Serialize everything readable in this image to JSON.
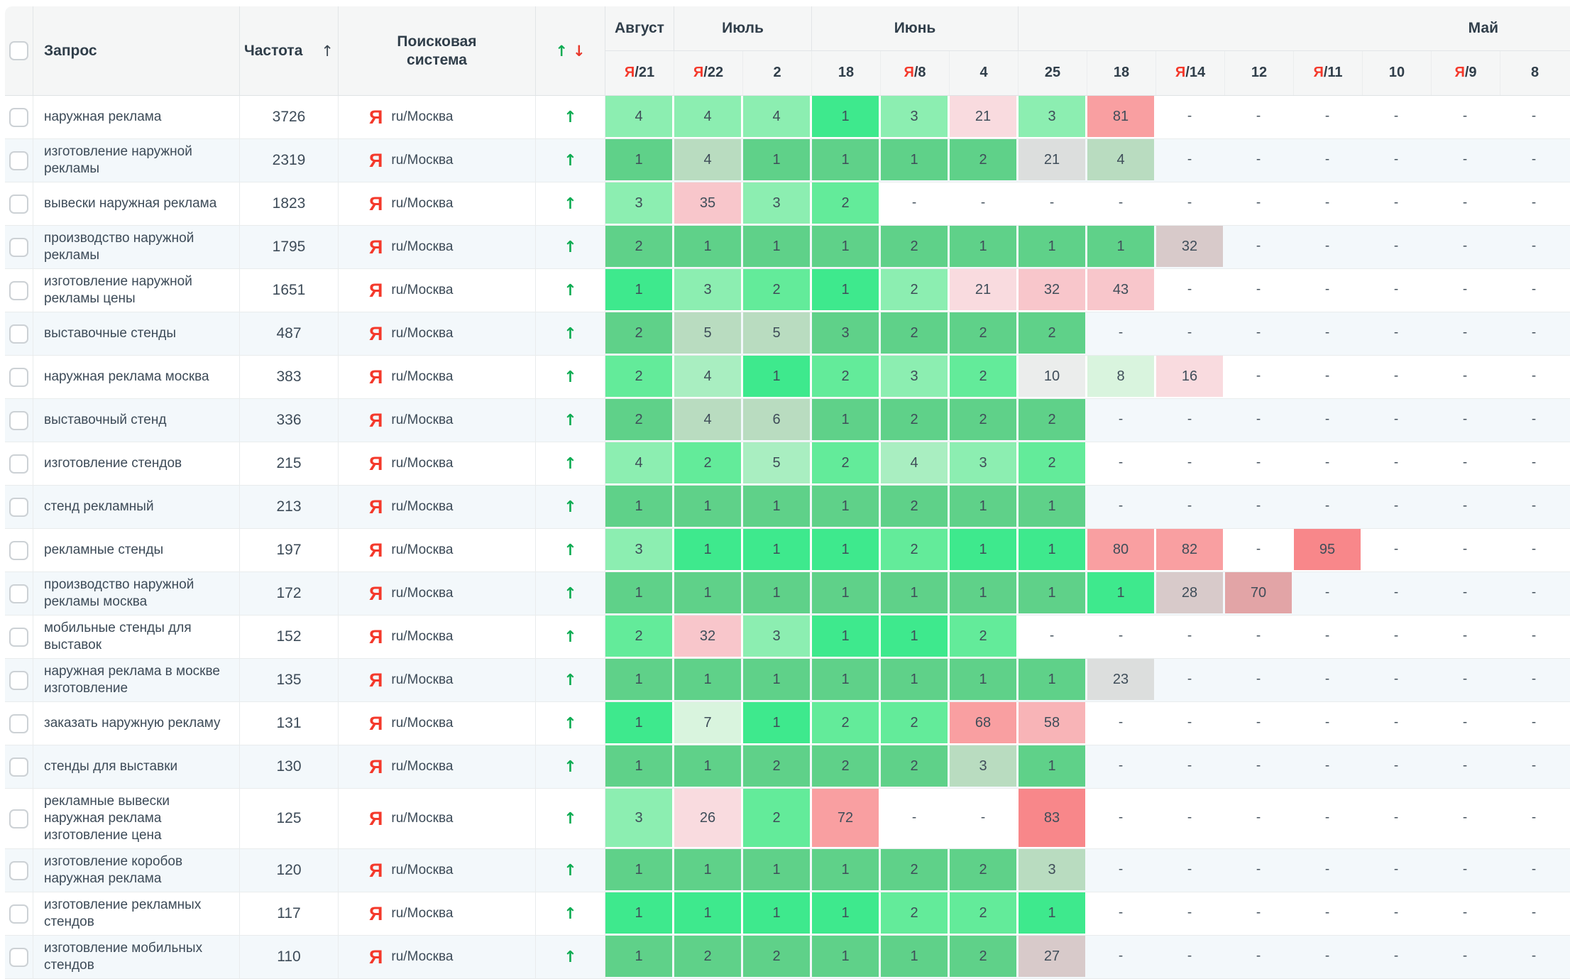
{
  "header": {
    "query_label": "Запрос",
    "frequency_label": "Частота",
    "engine_label": "Поисковая система",
    "sort_arrow": "↑",
    "up_arrow": "↑",
    "down_arrow": "↓",
    "month_groups": [
      {
        "key": "august",
        "label": "Август",
        "span": 1
      },
      {
        "key": "july",
        "label": "Июль",
        "span": 2
      },
      {
        "key": "june",
        "label": "Июнь",
        "span": 3
      },
      {
        "key": "may",
        "label": "Май",
        "span": 8,
        "align": "right"
      }
    ],
    "date_columns": [
      {
        "prefix": "Я",
        "label": "/21"
      },
      {
        "prefix": "Я",
        "label": "/22"
      },
      {
        "label": "2"
      },
      {
        "label": "18"
      },
      {
        "prefix": "Я",
        "label": "/8"
      },
      {
        "label": "4"
      },
      {
        "label": "25"
      },
      {
        "label": "18"
      },
      {
        "prefix": "Я",
        "label": "/14"
      },
      {
        "label": "12"
      },
      {
        "prefix": "Я",
        "label": "/11"
      },
      {
        "label": "10"
      },
      {
        "prefix": "Я",
        "label": "/9"
      },
      {
        "label": "8"
      }
    ]
  },
  "colors": {
    "accent_green": "#0cab51",
    "accent_red": "#e8372a",
    "yandex_red": "#f4392b",
    "header_bg": "#f5f6f6",
    "row_alt_bg": "#f3f8fb"
  },
  "palette": {
    "g1": "#3ee98d",
    "gb": "#63eb9a",
    "g2": "#8ceeb1",
    "g2p": "#a9eec1",
    "g3": "#5fd189",
    "g4": "#b9dcc0",
    "g5": "#d9f4de",
    "gray1": "#dcdedd",
    "gray2": "#ebedec",
    "gp": "#d8caca",
    "rose": "#e2a4a6",
    "p1": "#f9dbdf",
    "p2": "#f8c6cb",
    "p3": "#f99fa1",
    "p4": "#f8b4b7",
    "p5": "#f8878a"
  },
  "rows": [
    {
      "query": "наружная реклама",
      "frequency": "3726",
      "engine_icon": "Я",
      "engine": "ru/Москва",
      "trend": "up",
      "cells": [
        [
          "4",
          "g2"
        ],
        [
          "4",
          "g2"
        ],
        [
          "4",
          "g2"
        ],
        [
          "1",
          "g1"
        ],
        [
          "3",
          "g2"
        ],
        [
          "21",
          "p1"
        ],
        [
          "3",
          "g2"
        ],
        [
          "81",
          "p3"
        ],
        [
          "-",
          ""
        ],
        [
          "-",
          ""
        ],
        [
          "-",
          ""
        ],
        [
          "-",
          ""
        ],
        [
          "-",
          ""
        ],
        [
          "-",
          ""
        ]
      ]
    },
    {
      "query": "изготовление наружной рекламы",
      "frequency": "2319",
      "engine_icon": "Я",
      "engine": "ru/Москва",
      "trend": "up",
      "cells": [
        [
          "1",
          "g3"
        ],
        [
          "4",
          "g4"
        ],
        [
          "1",
          "g3"
        ],
        [
          "1",
          "g3"
        ],
        [
          "1",
          "g3"
        ],
        [
          "2",
          "g3"
        ],
        [
          "21",
          "gray1"
        ],
        [
          "4",
          "g4"
        ],
        [
          "-",
          ""
        ],
        [
          "-",
          ""
        ],
        [
          "-",
          ""
        ],
        [
          "-",
          ""
        ],
        [
          "-",
          ""
        ],
        [
          "-",
          ""
        ]
      ]
    },
    {
      "query": "вывески наружная реклама",
      "frequency": "1823",
      "engine_icon": "Я",
      "engine": "ru/Москва",
      "trend": "up",
      "cells": [
        [
          "3",
          "g2"
        ],
        [
          "35",
          "p2"
        ],
        [
          "3",
          "g2"
        ],
        [
          "2",
          "gb"
        ],
        [
          "-",
          ""
        ],
        [
          "-",
          ""
        ],
        [
          "-",
          ""
        ],
        [
          "-",
          ""
        ],
        [
          "-",
          ""
        ],
        [
          "-",
          ""
        ],
        [
          "-",
          ""
        ],
        [
          "-",
          ""
        ],
        [
          "-",
          ""
        ],
        [
          "-",
          ""
        ]
      ]
    },
    {
      "query": "производство наружной рекламы",
      "frequency": "1795",
      "engine_icon": "Я",
      "engine": "ru/Москва",
      "trend": "up",
      "cells": [
        [
          "2",
          "g3"
        ],
        [
          "1",
          "g3"
        ],
        [
          "1",
          "g3"
        ],
        [
          "1",
          "g3"
        ],
        [
          "2",
          "g3"
        ],
        [
          "1",
          "g3"
        ],
        [
          "1",
          "g3"
        ],
        [
          "1",
          "g3"
        ],
        [
          "32",
          "gp"
        ],
        [
          "-",
          ""
        ],
        [
          "-",
          ""
        ],
        [
          "-",
          ""
        ],
        [
          "-",
          ""
        ],
        [
          "-",
          ""
        ]
      ]
    },
    {
      "query": "изготовление наружной рекламы цены",
      "frequency": "1651",
      "engine_icon": "Я",
      "engine": "ru/Москва",
      "trend": "up",
      "cells": [
        [
          "1",
          "g1"
        ],
        [
          "3",
          "g2"
        ],
        [
          "2",
          "gb"
        ],
        [
          "1",
          "g1"
        ],
        [
          "2",
          "g2"
        ],
        [
          "21",
          "p1"
        ],
        [
          "32",
          "p2"
        ],
        [
          "43",
          "p2"
        ],
        [
          "-",
          ""
        ],
        [
          "-",
          ""
        ],
        [
          "-",
          ""
        ],
        [
          "-",
          ""
        ],
        [
          "-",
          ""
        ],
        [
          "-",
          ""
        ]
      ]
    },
    {
      "query": "выставочные стенды",
      "frequency": "487",
      "engine_icon": "Я",
      "engine": "ru/Москва",
      "trend": "up",
      "cells": [
        [
          "2",
          "g3"
        ],
        [
          "5",
          "g4"
        ],
        [
          "5",
          "g4"
        ],
        [
          "3",
          "g3"
        ],
        [
          "2",
          "g3"
        ],
        [
          "2",
          "g3"
        ],
        [
          "2",
          "g3"
        ],
        [
          "-",
          ""
        ],
        [
          "-",
          ""
        ],
        [
          "-",
          ""
        ],
        [
          "-",
          ""
        ],
        [
          "-",
          ""
        ],
        [
          "-",
          ""
        ],
        [
          "-",
          ""
        ]
      ]
    },
    {
      "query": "наружная реклама москва",
      "frequency": "383",
      "engine_icon": "Я",
      "engine": "ru/Москва",
      "trend": "up",
      "cells": [
        [
          "2",
          "gb"
        ],
        [
          "4",
          "g2p"
        ],
        [
          "1",
          "g1"
        ],
        [
          "2",
          "gb"
        ],
        [
          "3",
          "g2"
        ],
        [
          "2",
          "gb"
        ],
        [
          "10",
          "gray2"
        ],
        [
          "8",
          "g5"
        ],
        [
          "16",
          "p1"
        ],
        [
          "-",
          ""
        ],
        [
          "-",
          ""
        ],
        [
          "-",
          ""
        ],
        [
          "-",
          ""
        ],
        [
          "-",
          ""
        ]
      ]
    },
    {
      "query": "выставочный стенд",
      "frequency": "336",
      "engine_icon": "Я",
      "engine": "ru/Москва",
      "trend": "up",
      "cells": [
        [
          "2",
          "g3"
        ],
        [
          "4",
          "g4"
        ],
        [
          "6",
          "g4"
        ],
        [
          "1",
          "g3"
        ],
        [
          "2",
          "g3"
        ],
        [
          "2",
          "g3"
        ],
        [
          "2",
          "g3"
        ],
        [
          "-",
          ""
        ],
        [
          "-",
          ""
        ],
        [
          "-",
          ""
        ],
        [
          "-",
          ""
        ],
        [
          "-",
          ""
        ],
        [
          "-",
          ""
        ],
        [
          "-",
          ""
        ]
      ]
    },
    {
      "query": "изготовление стендов",
      "frequency": "215",
      "engine_icon": "Я",
      "engine": "ru/Москва",
      "trend": "up",
      "cells": [
        [
          "4",
          "g2"
        ],
        [
          "2",
          "gb"
        ],
        [
          "5",
          "g2p"
        ],
        [
          "2",
          "gb"
        ],
        [
          "4",
          "g2p"
        ],
        [
          "3",
          "g2"
        ],
        [
          "2",
          "gb"
        ],
        [
          "-",
          ""
        ],
        [
          "-",
          ""
        ],
        [
          "-",
          ""
        ],
        [
          "-",
          ""
        ],
        [
          "-",
          ""
        ],
        [
          "-",
          ""
        ],
        [
          "-",
          ""
        ]
      ]
    },
    {
      "query": "стенд рекламный",
      "frequency": "213",
      "engine_icon": "Я",
      "engine": "ru/Москва",
      "trend": "up",
      "cells": [
        [
          "1",
          "g3"
        ],
        [
          "1",
          "g3"
        ],
        [
          "1",
          "g3"
        ],
        [
          "1",
          "g3"
        ],
        [
          "2",
          "g3"
        ],
        [
          "1",
          "g3"
        ],
        [
          "1",
          "g3"
        ],
        [
          "-",
          ""
        ],
        [
          "-",
          ""
        ],
        [
          "-",
          ""
        ],
        [
          "-",
          ""
        ],
        [
          "-",
          ""
        ],
        [
          "-",
          ""
        ],
        [
          "-",
          ""
        ]
      ]
    },
    {
      "query": "рекламные стенды",
      "frequency": "197",
      "engine_icon": "Я",
      "engine": "ru/Москва",
      "trend": "up",
      "cells": [
        [
          "3",
          "g2"
        ],
        [
          "1",
          "g1"
        ],
        [
          "1",
          "g1"
        ],
        [
          "1",
          "g1"
        ],
        [
          "2",
          "gb"
        ],
        [
          "1",
          "g1"
        ],
        [
          "1",
          "g1"
        ],
        [
          "80",
          "p3"
        ],
        [
          "82",
          "p3"
        ],
        [
          "-",
          ""
        ],
        [
          "95",
          "p5"
        ],
        [
          "-",
          ""
        ],
        [
          "-",
          ""
        ],
        [
          "-",
          ""
        ]
      ]
    },
    {
      "query": "производство наружной рекламы москва",
      "frequency": "172",
      "engine_icon": "Я",
      "engine": "ru/Москва",
      "trend": "up",
      "cells": [
        [
          "1",
          "g3"
        ],
        [
          "1",
          "g3"
        ],
        [
          "1",
          "g3"
        ],
        [
          "1",
          "g3"
        ],
        [
          "1",
          "g3"
        ],
        [
          "1",
          "g3"
        ],
        [
          "1",
          "g3"
        ],
        [
          "1",
          "g1"
        ],
        [
          "28",
          "gp"
        ],
        [
          "70",
          "rose"
        ],
        [
          "-",
          ""
        ],
        [
          "-",
          ""
        ],
        [
          "-",
          ""
        ],
        [
          "-",
          ""
        ]
      ]
    },
    {
      "query": "мобильные стенды для выставок",
      "frequency": "152",
      "engine_icon": "Я",
      "engine": "ru/Москва",
      "trend": "up",
      "cells": [
        [
          "2",
          "gb"
        ],
        [
          "32",
          "p2"
        ],
        [
          "3",
          "g2"
        ],
        [
          "1",
          "g1"
        ],
        [
          "1",
          "g1"
        ],
        [
          "2",
          "gb"
        ],
        [
          "-",
          ""
        ],
        [
          "-",
          ""
        ],
        [
          "-",
          ""
        ],
        [
          "-",
          ""
        ],
        [
          "-",
          ""
        ],
        [
          "-",
          ""
        ],
        [
          "-",
          ""
        ],
        [
          "-",
          ""
        ]
      ]
    },
    {
      "query": "наружная реклама в москве изготовление",
      "frequency": "135",
      "engine_icon": "Я",
      "engine": "ru/Москва",
      "trend": "up",
      "cells": [
        [
          "1",
          "g3"
        ],
        [
          "1",
          "g3"
        ],
        [
          "1",
          "g3"
        ],
        [
          "1",
          "g3"
        ],
        [
          "1",
          "g3"
        ],
        [
          "1",
          "g3"
        ],
        [
          "1",
          "g3"
        ],
        [
          "23",
          "gray1"
        ],
        [
          "-",
          ""
        ],
        [
          "-",
          ""
        ],
        [
          "-",
          ""
        ],
        [
          "-",
          ""
        ],
        [
          "-",
          ""
        ],
        [
          "-",
          ""
        ]
      ]
    },
    {
      "query": "заказать наружную рекламу",
      "frequency": "131",
      "engine_icon": "Я",
      "engine": "ru/Москва",
      "trend": "up",
      "cells": [
        [
          "1",
          "g1"
        ],
        [
          "7",
          "g5"
        ],
        [
          "1",
          "g1"
        ],
        [
          "2",
          "gb"
        ],
        [
          "2",
          "gb"
        ],
        [
          "68",
          "p3"
        ],
        [
          "58",
          "p4"
        ],
        [
          "-",
          ""
        ],
        [
          "-",
          ""
        ],
        [
          "-",
          ""
        ],
        [
          "-",
          ""
        ],
        [
          "-",
          ""
        ],
        [
          "-",
          ""
        ],
        [
          "-",
          ""
        ]
      ]
    },
    {
      "query": "стенды для выставки",
      "frequency": "130",
      "engine_icon": "Я",
      "engine": "ru/Москва",
      "trend": "up",
      "cells": [
        [
          "1",
          "g3"
        ],
        [
          "1",
          "g3"
        ],
        [
          "2",
          "g3"
        ],
        [
          "2",
          "g3"
        ],
        [
          "2",
          "g3"
        ],
        [
          "3",
          "g4"
        ],
        [
          "1",
          "g3"
        ],
        [
          "-",
          ""
        ],
        [
          "-",
          ""
        ],
        [
          "-",
          ""
        ],
        [
          "-",
          ""
        ],
        [
          "-",
          ""
        ],
        [
          "-",
          ""
        ],
        [
          "-",
          ""
        ]
      ]
    },
    {
      "query": "рекламные вывески наружная реклама изготовление цена",
      "frequency": "125",
      "engine_icon": "Я",
      "engine": "ru/Москва",
      "trend": "up",
      "tall": true,
      "cells": [
        [
          "3",
          "g2"
        ],
        [
          "26",
          "p1"
        ],
        [
          "2",
          "gb"
        ],
        [
          "72",
          "p3"
        ],
        [
          "-",
          ""
        ],
        [
          "-",
          ""
        ],
        [
          "83",
          "p5"
        ],
        [
          "-",
          ""
        ],
        [
          "-",
          ""
        ],
        [
          "-",
          ""
        ],
        [
          "-",
          ""
        ],
        [
          "-",
          ""
        ],
        [
          "-",
          ""
        ],
        [
          "-",
          ""
        ]
      ]
    },
    {
      "query": "изготовление коробов наружная реклама",
      "frequency": "120",
      "engine_icon": "Я",
      "engine": "ru/Москва",
      "trend": "up",
      "cells": [
        [
          "1",
          "g3"
        ],
        [
          "1",
          "g3"
        ],
        [
          "1",
          "g3"
        ],
        [
          "1",
          "g3"
        ],
        [
          "2",
          "g3"
        ],
        [
          "2",
          "g3"
        ],
        [
          "3",
          "g4"
        ],
        [
          "-",
          ""
        ],
        [
          "-",
          ""
        ],
        [
          "-",
          ""
        ],
        [
          "-",
          ""
        ],
        [
          "-",
          ""
        ],
        [
          "-",
          ""
        ],
        [
          "-",
          ""
        ]
      ]
    },
    {
      "query": "изготовление рекламных стендов",
      "frequency": "117",
      "engine_icon": "Я",
      "engine": "ru/Москва",
      "trend": "up",
      "cells": [
        [
          "1",
          "g1"
        ],
        [
          "1",
          "g1"
        ],
        [
          "1",
          "g1"
        ],
        [
          "1",
          "g1"
        ],
        [
          "2",
          "gb"
        ],
        [
          "2",
          "gb"
        ],
        [
          "1",
          "g1"
        ],
        [
          "-",
          ""
        ],
        [
          "-",
          ""
        ],
        [
          "-",
          ""
        ],
        [
          "-",
          ""
        ],
        [
          "-",
          ""
        ],
        [
          "-",
          ""
        ],
        [
          "-",
          ""
        ]
      ]
    },
    {
      "query": "изготовление мобильных стендов",
      "frequency": "110",
      "engine_icon": "Я",
      "engine": "ru/Москва",
      "trend": "up",
      "cells": [
        [
          "1",
          "g3"
        ],
        [
          "2",
          "g3"
        ],
        [
          "2",
          "g3"
        ],
        [
          "1",
          "g3"
        ],
        [
          "1",
          "g3"
        ],
        [
          "2",
          "g3"
        ],
        [
          "27",
          "gp"
        ],
        [
          "-",
          ""
        ],
        [
          "-",
          ""
        ],
        [
          "-",
          ""
        ],
        [
          "-",
          ""
        ],
        [
          "-",
          ""
        ],
        [
          "-",
          ""
        ],
        [
          "-",
          ""
        ]
      ]
    }
  ]
}
